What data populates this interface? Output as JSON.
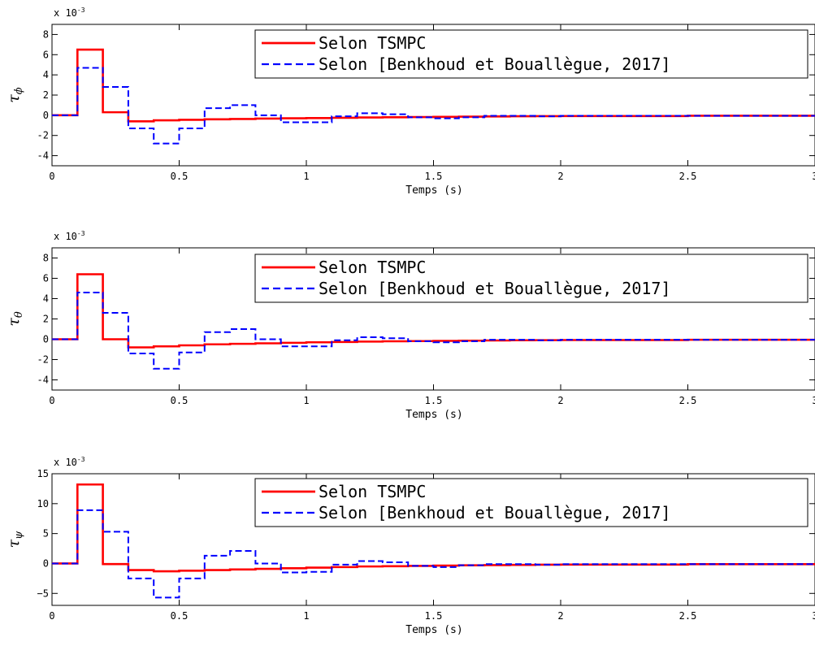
{
  "chart_data": [
    {
      "type": "line",
      "xlabel": "Temps (s)",
      "ylabel": {
        "base": "τ",
        "sub": "ϕ"
      },
      "scale": {
        "prefix": "x 10",
        "exp": "-3"
      },
      "xlim": [
        0,
        3
      ],
      "ylim": [
        -5,
        9
      ],
      "xticks": [
        0,
        0.5,
        1,
        1.5,
        2,
        2.5,
        3
      ],
      "xtick_labels": [
        "0",
        "0.5",
        "1",
        "1.5",
        "2",
        "2.5",
        "3"
      ],
      "yticks": [
        -4,
        -2,
        0,
        2,
        4,
        6,
        8
      ],
      "ytick_labels": [
        "-4",
        "-2",
        "0",
        "2",
        "4",
        "6",
        "8"
      ],
      "grid": false,
      "legend_position": "top-right",
      "series": [
        {
          "name": "Selon TSMPC",
          "color": "#ff0000",
          "style": "solid",
          "step": true,
          "x": [
            0,
            0.1,
            0.2,
            0.3,
            0.4,
            0.5,
            0.6,
            0.7,
            0.8,
            0.9,
            1.0,
            1.1,
            1.2,
            1.3,
            1.4,
            1.5,
            1.6,
            1.7,
            1.8,
            1.9,
            2.0,
            2.5,
            3.0
          ],
          "y": [
            0,
            6.5,
            0.3,
            -0.6,
            -0.5,
            -0.45,
            -0.4,
            -0.37,
            -0.33,
            -0.3,
            -0.28,
            -0.25,
            -0.22,
            -0.2,
            -0.18,
            -0.16,
            -0.14,
            -0.12,
            -0.1,
            -0.09,
            -0.08,
            -0.05,
            -0.05
          ]
        },
        {
          "name": "Selon [Benkhoud et Bouallègue, 2017]",
          "color": "#0000ff",
          "style": "dashed",
          "step": true,
          "x": [
            0,
            0.1,
            0.2,
            0.3,
            0.4,
            0.5,
            0.6,
            0.7,
            0.8,
            0.9,
            1.0,
            1.1,
            1.2,
            1.3,
            1.4,
            1.5,
            1.6,
            1.7,
            1.8,
            1.9,
            2.0,
            2.5,
            3.0
          ],
          "y": [
            0,
            4.7,
            2.8,
            -1.3,
            -2.8,
            -1.3,
            0.7,
            1.0,
            0.0,
            -0.7,
            -0.7,
            -0.1,
            0.2,
            0.1,
            -0.2,
            -0.3,
            -0.2,
            -0.05,
            -0.05,
            -0.1,
            -0.05,
            -0.05,
            -0.05
          ]
        }
      ]
    },
    {
      "type": "line",
      "xlabel": "Temps (s)",
      "ylabel": {
        "base": "τ",
        "sub": "θ"
      },
      "scale": {
        "prefix": "x 10",
        "exp": "-3"
      },
      "xlim": [
        0,
        3
      ],
      "ylim": [
        -5,
        9
      ],
      "xticks": [
        0,
        0.5,
        1,
        1.5,
        2,
        2.5,
        3
      ],
      "xtick_labels": [
        "0",
        "0.5",
        "1",
        "1.5",
        "2",
        "2.5",
        "3"
      ],
      "yticks": [
        -4,
        -2,
        0,
        2,
        4,
        6,
        8
      ],
      "ytick_labels": [
        "-4",
        "-2",
        "0",
        "2",
        "4",
        "6",
        "8"
      ],
      "grid": false,
      "legend_position": "top-right",
      "series": [
        {
          "name": "Selon TSMPC",
          "color": "#ff0000",
          "style": "solid",
          "step": true,
          "x": [
            0,
            0.1,
            0.2,
            0.3,
            0.4,
            0.5,
            0.6,
            0.7,
            0.8,
            0.9,
            1.0,
            1.1,
            1.2,
            1.3,
            1.4,
            1.5,
            1.6,
            1.7,
            1.8,
            1.9,
            2.0,
            2.5,
            3.0
          ],
          "y": [
            0,
            6.4,
            0.0,
            -0.8,
            -0.7,
            -0.6,
            -0.5,
            -0.45,
            -0.4,
            -0.35,
            -0.3,
            -0.27,
            -0.23,
            -0.2,
            -0.18,
            -0.16,
            -0.14,
            -0.12,
            -0.1,
            -0.09,
            -0.08,
            -0.05,
            -0.05
          ]
        },
        {
          "name": "Selon [Benkhoud et Bouallègue, 2017]",
          "color": "#0000ff",
          "style": "dashed",
          "step": true,
          "x": [
            0,
            0.1,
            0.2,
            0.3,
            0.4,
            0.5,
            0.6,
            0.7,
            0.8,
            0.9,
            1.0,
            1.1,
            1.2,
            1.3,
            1.4,
            1.5,
            1.6,
            1.7,
            1.8,
            1.9,
            2.0,
            2.5,
            3.0
          ],
          "y": [
            0,
            4.6,
            2.6,
            -1.4,
            -2.9,
            -1.3,
            0.7,
            1.0,
            0.0,
            -0.7,
            -0.7,
            -0.1,
            0.2,
            0.1,
            -0.2,
            -0.3,
            -0.2,
            -0.05,
            -0.05,
            -0.1,
            -0.05,
            -0.05,
            -0.05
          ]
        }
      ]
    },
    {
      "type": "line",
      "xlabel": "Temps (s)",
      "ylabel": {
        "base": "τ",
        "sub": "ψ"
      },
      "scale": {
        "prefix": "x 10",
        "exp": "-3"
      },
      "xlim": [
        0,
        3
      ],
      "ylim": [
        -7,
        15
      ],
      "xticks": [
        0,
        0.5,
        1,
        1.5,
        2,
        2.5,
        3
      ],
      "xtick_labels": [
        "0",
        "0.5",
        "1",
        "1.5",
        "2",
        "2.5",
        "3"
      ],
      "yticks": [
        -5,
        0,
        5,
        10,
        15
      ],
      "ytick_labels": [
        "−5",
        "0",
        "5",
        "10",
        "15"
      ],
      "grid": false,
      "legend_position": "top-right",
      "series": [
        {
          "name": "Selon TSMPC",
          "color": "#ff0000",
          "style": "solid",
          "step": true,
          "x": [
            0,
            0.1,
            0.2,
            0.3,
            0.4,
            0.5,
            0.6,
            0.7,
            0.8,
            0.9,
            1.0,
            1.1,
            1.2,
            1.3,
            1.4,
            1.5,
            1.6,
            1.7,
            1.8,
            1.9,
            2.0,
            2.5,
            3.0
          ],
          "y": [
            0,
            13.2,
            -0.1,
            -1.1,
            -1.3,
            -1.2,
            -1.1,
            -1.0,
            -0.9,
            -0.8,
            -0.7,
            -0.6,
            -0.5,
            -0.45,
            -0.4,
            -0.35,
            -0.3,
            -0.27,
            -0.24,
            -0.2,
            -0.18,
            -0.12,
            -0.1
          ]
        },
        {
          "name": "Selon [Benkhoud et Bouallègue, 2017]",
          "color": "#0000ff",
          "style": "dashed",
          "step": true,
          "x": [
            0,
            0.1,
            0.2,
            0.3,
            0.4,
            0.5,
            0.6,
            0.7,
            0.8,
            0.9,
            1.0,
            1.1,
            1.2,
            1.3,
            1.4,
            1.5,
            1.6,
            1.7,
            1.8,
            1.9,
            2.0,
            2.5,
            3.0
          ],
          "y": [
            0,
            8.9,
            5.3,
            -2.5,
            -5.7,
            -2.5,
            1.3,
            2.1,
            0.0,
            -1.5,
            -1.4,
            -0.2,
            0.4,
            0.2,
            -0.4,
            -0.6,
            -0.3,
            -0.1,
            -0.1,
            -0.2,
            -0.1,
            -0.1,
            -0.1
          ]
        }
      ]
    }
  ]
}
